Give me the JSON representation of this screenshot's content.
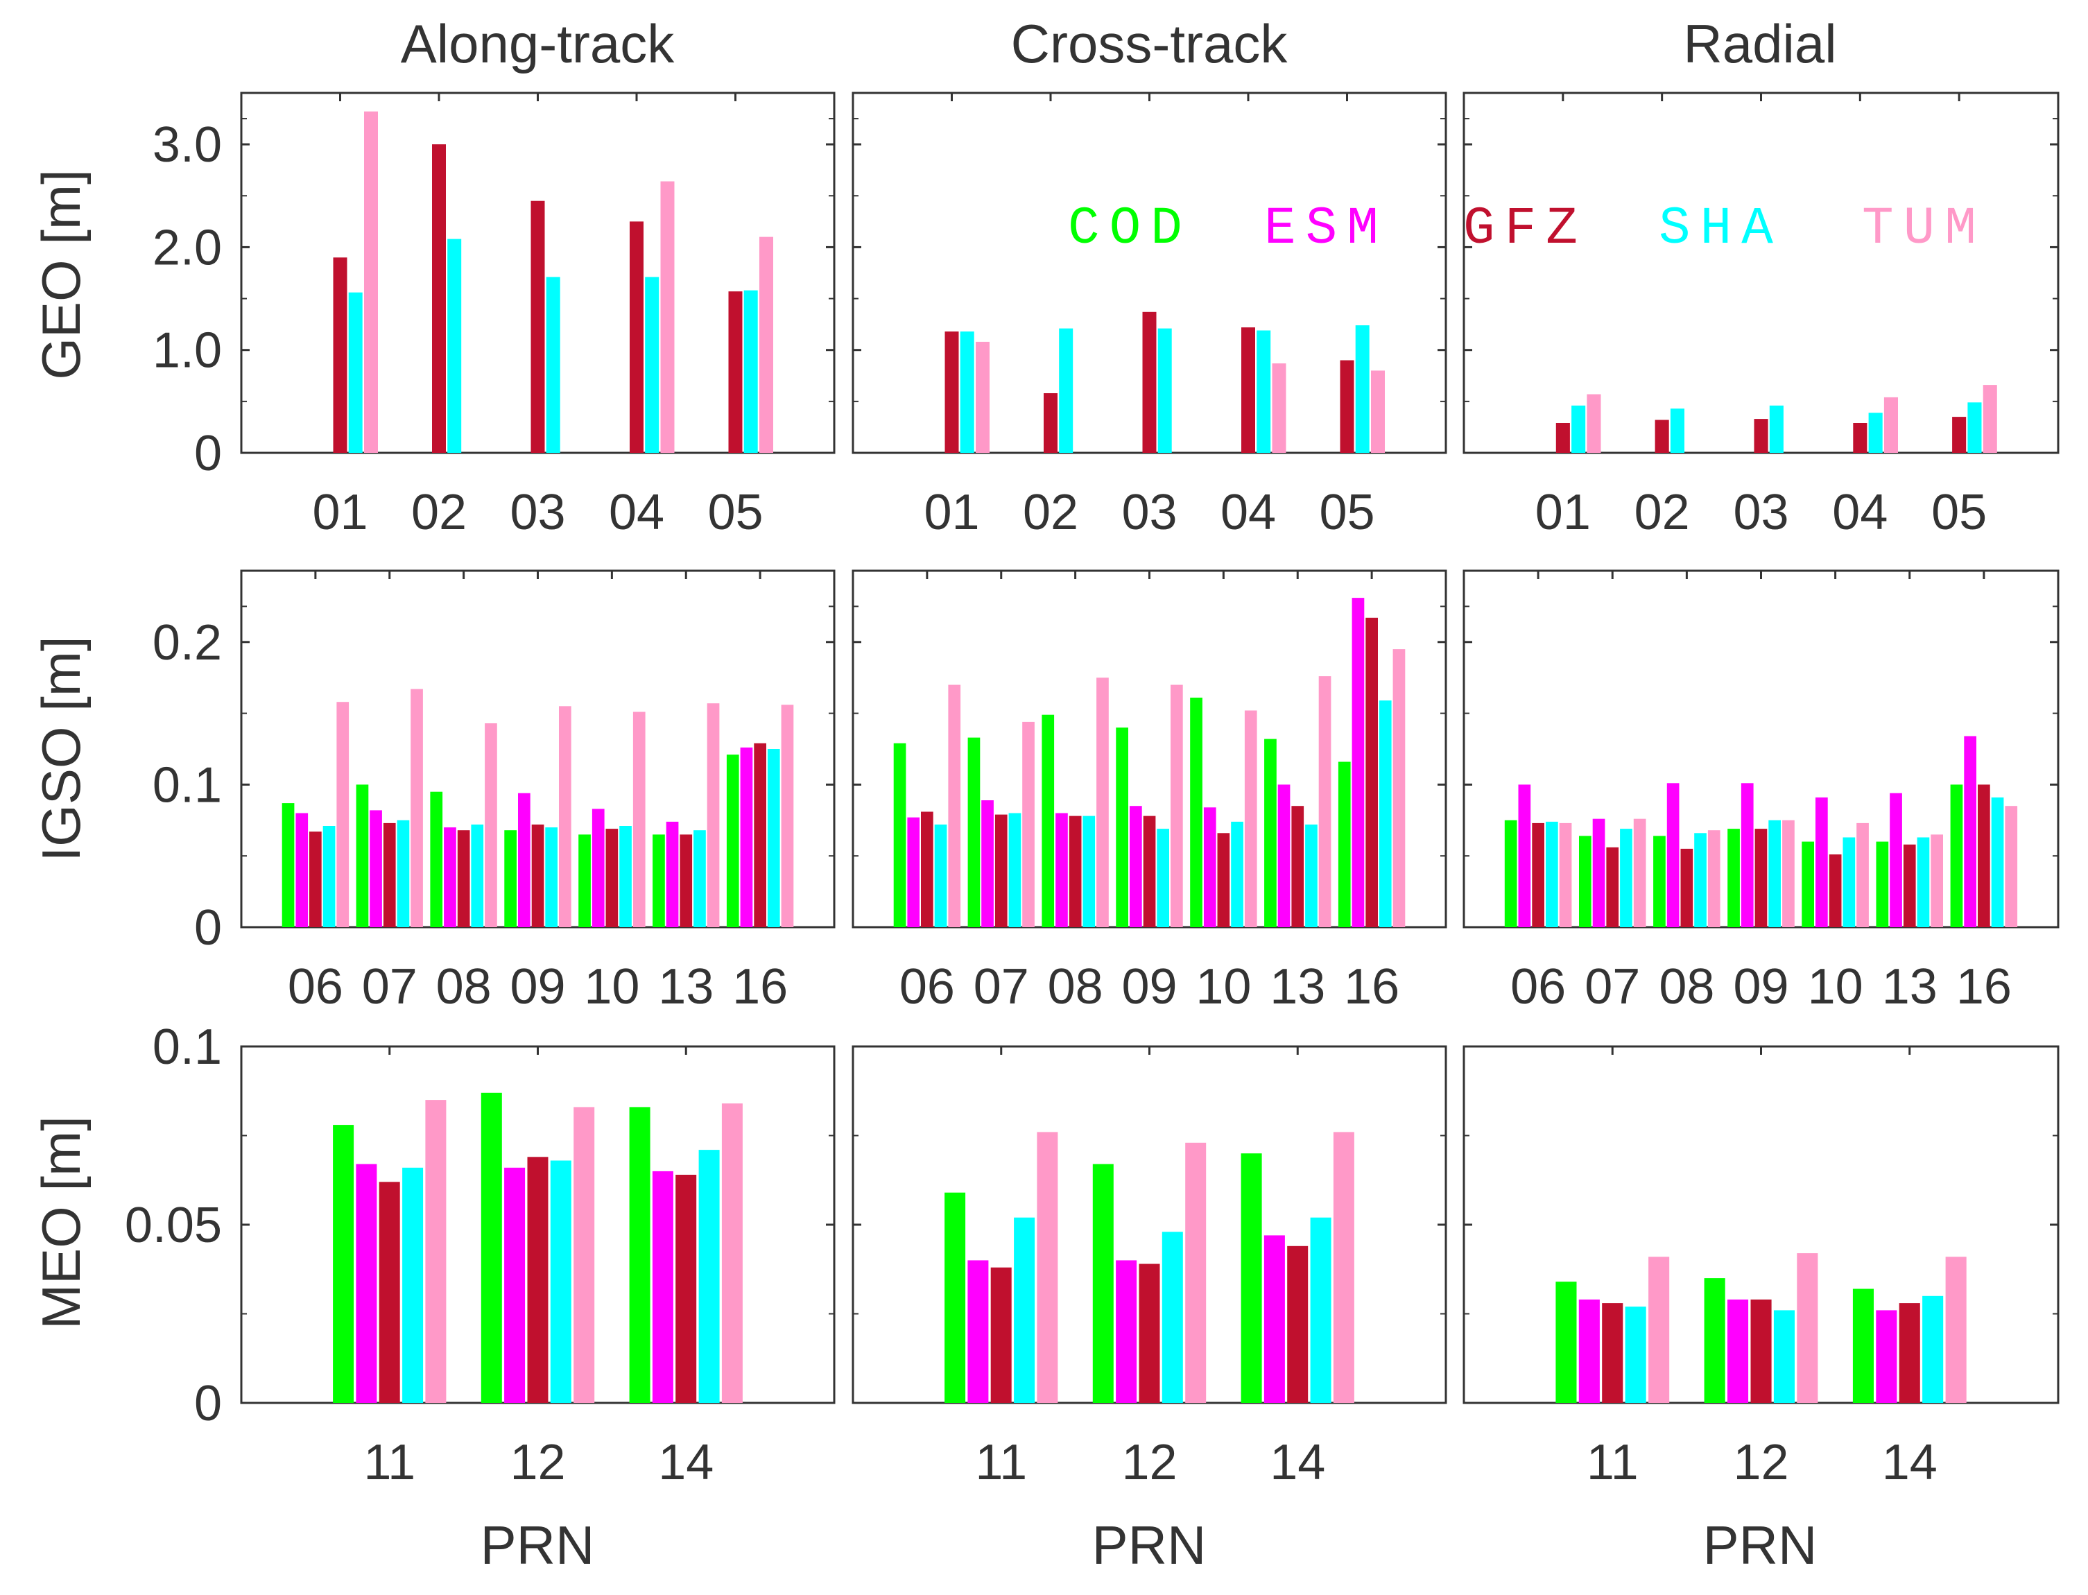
{
  "figure": {
    "column_titles": [
      "Along-track",
      "Cross-track",
      "Radial"
    ],
    "row_labels": [
      "GEO [m]",
      "IGSO [m]",
      "MEO [m]"
    ],
    "xlabel": "PRN"
  },
  "legend": {
    "entries": [
      {
        "name": "COD",
        "color": "#00ff00"
      },
      {
        "name": "ESM",
        "color": "#ff00ff"
      },
      {
        "name": "GFZ",
        "color": "#c0102e"
      },
      {
        "name": "SHA",
        "color": "#00ffff"
      },
      {
        "name": "TUM",
        "color": "#ff99c8"
      }
    ]
  },
  "chart_data": {
    "type": "bar",
    "series_names": [
      "COD",
      "ESM",
      "GFZ",
      "SHA",
      "TUM"
    ],
    "series_colors": [
      "#00ff00",
      "#ff00ff",
      "#c0102e",
      "#00ffff",
      "#ff99c8"
    ],
    "rows": [
      {
        "name": "GEO",
        "ylabel": "GEO [m]",
        "categories": [
          "01",
          "02",
          "03",
          "04",
          "05"
        ],
        "ylim": [
          0,
          3.5
        ],
        "yticks": [
          0,
          1,
          2,
          3
        ],
        "ytick_labels": [
          "0",
          "1.0",
          "2.0",
          "3.0"
        ],
        "panels": [
          {
            "component": "Along-track",
            "series": [
              {
                "name": "COD",
                "values": [
                  null,
                  null,
                  null,
                  null,
                  null
                ]
              },
              {
                "name": "ESM",
                "values": [
                  null,
                  null,
                  null,
                  null,
                  null
                ]
              },
              {
                "name": "GFZ",
                "values": [
                  1.9,
                  3.0,
                  2.45,
                  2.25,
                  1.57
                ]
              },
              {
                "name": "SHA",
                "values": [
                  1.56,
                  2.08,
                  1.71,
                  1.71,
                  1.58
                ]
              },
              {
                "name": "TUM",
                "values": [
                  3.32,
                  null,
                  null,
                  2.64,
                  2.1
                ]
              }
            ]
          },
          {
            "component": "Cross-track",
            "series": [
              {
                "name": "COD",
                "values": [
                  null,
                  null,
                  null,
                  null,
                  null
                ]
              },
              {
                "name": "ESM",
                "values": [
                  null,
                  null,
                  null,
                  null,
                  null
                ]
              },
              {
                "name": "GFZ",
                "values": [
                  1.18,
                  0.58,
                  1.37,
                  1.22,
                  0.9
                ]
              },
              {
                "name": "SHA",
                "values": [
                  1.18,
                  1.21,
                  1.21,
                  1.19,
                  1.24
                ]
              },
              {
                "name": "TUM",
                "values": [
                  1.08,
                  null,
                  null,
                  0.87,
                  0.8
                ]
              }
            ]
          },
          {
            "component": "Radial",
            "series": [
              {
                "name": "COD",
                "values": [
                  null,
                  null,
                  null,
                  null,
                  null
                ]
              },
              {
                "name": "ESM",
                "values": [
                  null,
                  null,
                  null,
                  null,
                  null
                ]
              },
              {
                "name": "GFZ",
                "values": [
                  0.29,
                  0.32,
                  0.33,
                  0.29,
                  0.35
                ]
              },
              {
                "name": "SHA",
                "values": [
                  0.46,
                  0.43,
                  0.46,
                  0.39,
                  0.49
                ]
              },
              {
                "name": "TUM",
                "values": [
                  0.57,
                  null,
                  null,
                  0.54,
                  0.66
                ]
              }
            ]
          }
        ]
      },
      {
        "name": "IGSO",
        "ylabel": "IGSO [m]",
        "categories": [
          "06",
          "07",
          "08",
          "09",
          "10",
          "13",
          "16"
        ],
        "ylim": [
          0,
          0.25
        ],
        "yticks": [
          0,
          0.1,
          0.2
        ],
        "ytick_labels": [
          "0",
          "0.1",
          "0.2"
        ],
        "panels": [
          {
            "component": "Along-track",
            "series": [
              {
                "name": "COD",
                "values": [
                  0.087,
                  0.1,
                  0.095,
                  0.068,
                  0.065,
                  0.065,
                  0.121
                ]
              },
              {
                "name": "ESM",
                "values": [
                  0.08,
                  0.082,
                  0.07,
                  0.094,
                  0.083,
                  0.074,
                  0.126
                ]
              },
              {
                "name": "GFZ",
                "values": [
                  0.067,
                  0.073,
                  0.068,
                  0.072,
                  0.069,
                  0.065,
                  0.129
                ]
              },
              {
                "name": "SHA",
                "values": [
                  0.071,
                  0.075,
                  0.072,
                  0.07,
                  0.071,
                  0.068,
                  0.125
                ]
              },
              {
                "name": "TUM",
                "values": [
                  0.158,
                  0.167,
                  0.143,
                  0.155,
                  0.151,
                  0.157,
                  0.156
                ]
              }
            ]
          },
          {
            "component": "Cross-track",
            "series": [
              {
                "name": "COD",
                "values": [
                  0.129,
                  0.133,
                  0.149,
                  0.14,
                  0.161,
                  0.132,
                  0.116
                ]
              },
              {
                "name": "ESM",
                "values": [
                  0.077,
                  0.089,
                  0.08,
                  0.085,
                  0.084,
                  0.1,
                  0.231
                ]
              },
              {
                "name": "GFZ",
                "values": [
                  0.081,
                  0.079,
                  0.078,
                  0.078,
                  0.066,
                  0.085,
                  0.217
                ]
              },
              {
                "name": "SHA",
                "values": [
                  0.072,
                  0.08,
                  0.078,
                  0.069,
                  0.074,
                  0.072,
                  0.159
                ]
              },
              {
                "name": "TUM",
                "values": [
                  0.17,
                  0.144,
                  0.175,
                  0.17,
                  0.152,
                  0.176,
                  0.195
                ]
              }
            ]
          },
          {
            "component": "Radial",
            "series": [
              {
                "name": "COD",
                "values": [
                  0.075,
                  0.064,
                  0.064,
                  0.069,
                  0.06,
                  0.06,
                  0.1
                ]
              },
              {
                "name": "ESM",
                "values": [
                  0.1,
                  0.076,
                  0.101,
                  0.101,
                  0.091,
                  0.094,
                  0.134
                ]
              },
              {
                "name": "GFZ",
                "values": [
                  0.073,
                  0.056,
                  0.055,
                  0.069,
                  0.051,
                  0.058,
                  0.1
                ]
              },
              {
                "name": "SHA",
                "values": [
                  0.074,
                  0.069,
                  0.066,
                  0.075,
                  0.063,
                  0.063,
                  0.091
                ]
              },
              {
                "name": "TUM",
                "values": [
                  0.073,
                  0.076,
                  0.068,
                  0.075,
                  0.073,
                  0.065,
                  0.085
                ]
              }
            ]
          }
        ]
      },
      {
        "name": "MEO",
        "ylabel": "MEO [m]",
        "categories": [
          "11",
          "12",
          "14"
        ],
        "ylim": [
          0,
          0.1
        ],
        "yticks": [
          0,
          0.05,
          0.1
        ],
        "ytick_labels": [
          "0",
          "0.05",
          "0.1"
        ],
        "panels": [
          {
            "component": "Along-track",
            "series": [
              {
                "name": "COD",
                "values": [
                  0.078,
                  0.087,
                  0.083
                ]
              },
              {
                "name": "ESM",
                "values": [
                  0.067,
                  0.066,
                  0.065
                ]
              },
              {
                "name": "GFZ",
                "values": [
                  0.062,
                  0.069,
                  0.064
                ]
              },
              {
                "name": "SHA",
                "values": [
                  0.066,
                  0.068,
                  0.071
                ]
              },
              {
                "name": "TUM",
                "values": [
                  0.085,
                  0.083,
                  0.084
                ]
              }
            ]
          },
          {
            "component": "Cross-track",
            "series": [
              {
                "name": "COD",
                "values": [
                  0.059,
                  0.067,
                  0.07
                ]
              },
              {
                "name": "ESM",
                "values": [
                  0.04,
                  0.04,
                  0.047
                ]
              },
              {
                "name": "GFZ",
                "values": [
                  0.038,
                  0.039,
                  0.044
                ]
              },
              {
                "name": "SHA",
                "values": [
                  0.052,
                  0.048,
                  0.052
                ]
              },
              {
                "name": "TUM",
                "values": [
                  0.076,
                  0.073,
                  0.076
                ]
              }
            ]
          },
          {
            "component": "Radial",
            "series": [
              {
                "name": "COD",
                "values": [
                  0.034,
                  0.035,
                  0.032
                ]
              },
              {
                "name": "ESM",
                "values": [
                  0.029,
                  0.029,
                  0.026
                ]
              },
              {
                "name": "GFZ",
                "values": [
                  0.028,
                  0.029,
                  0.028
                ]
              },
              {
                "name": "SHA",
                "values": [
                  0.027,
                  0.026,
                  0.03
                ]
              },
              {
                "name": "TUM",
                "values": [
                  0.041,
                  0.042,
                  0.041
                ]
              }
            ]
          }
        ]
      }
    ]
  }
}
